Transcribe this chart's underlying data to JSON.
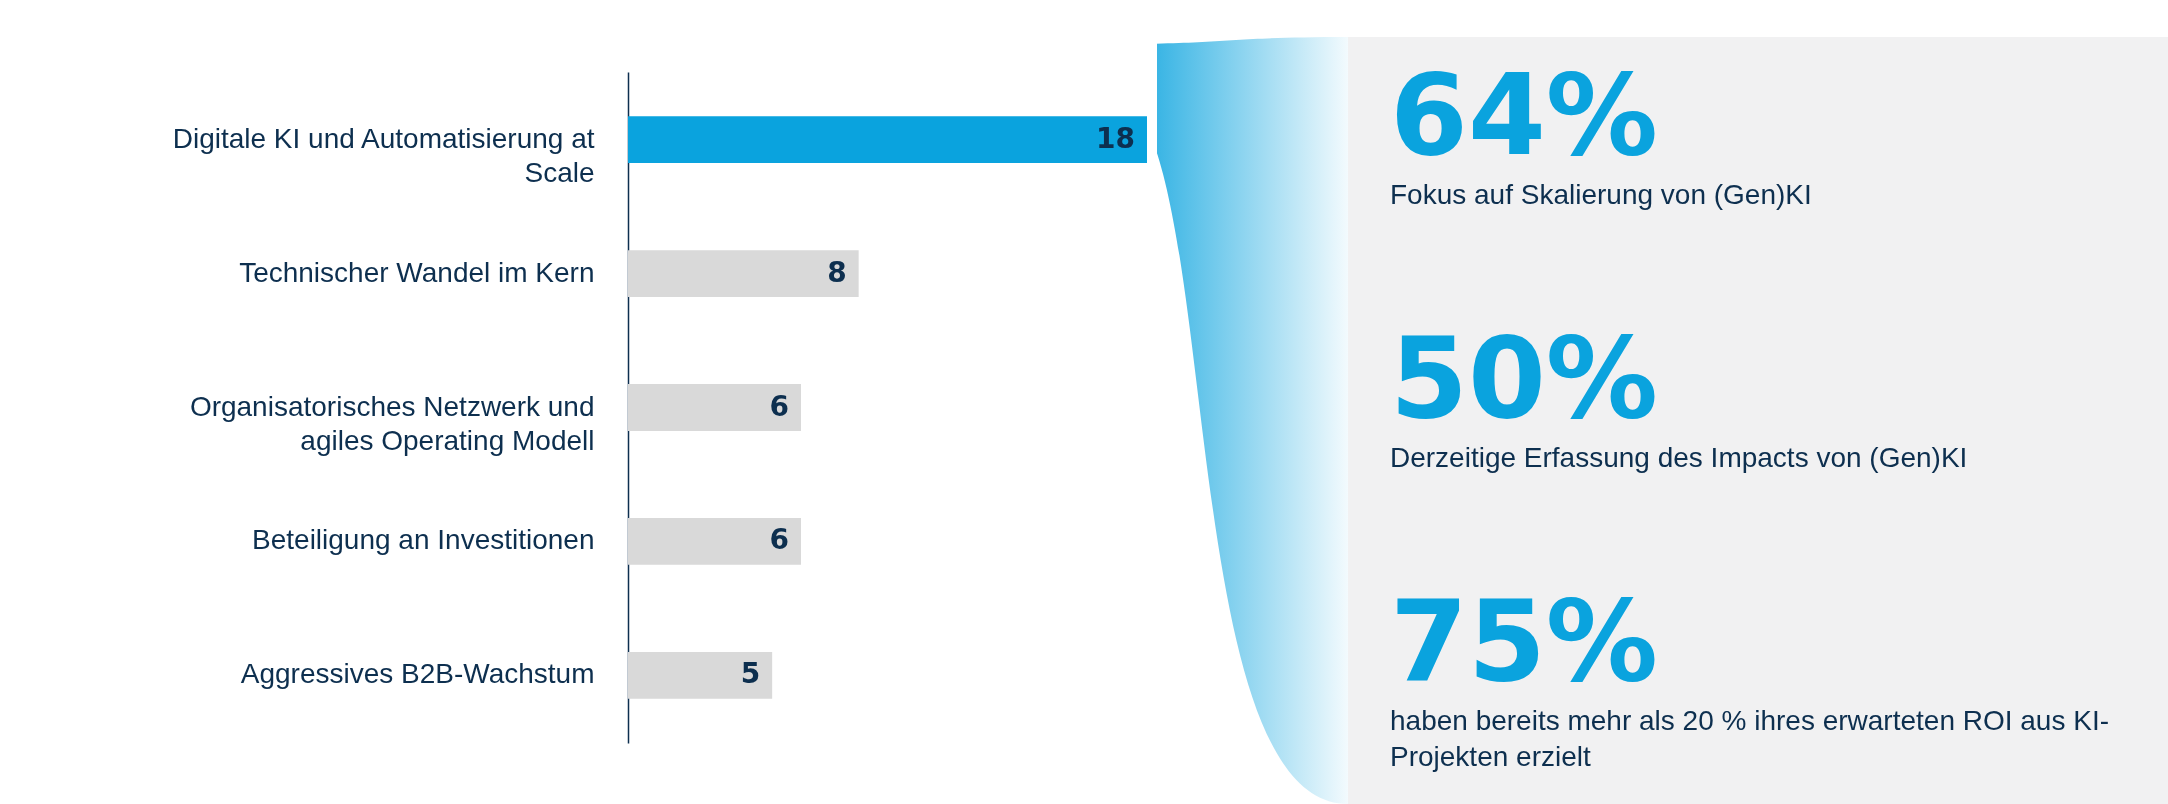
{
  "chart_data": [
    {
      "type": "bar",
      "orientation": "horizontal",
      "categories": [
        "Digitale KI und Automatisierung at Scale",
        "Technischer Wandel im Kern",
        "Organisatorisches Netzwerk und agiles Operating Modell",
        "Beteiligung an Investitionen",
        "Aggressives B2B-Wachstum"
      ],
      "values": [
        18,
        8,
        6,
        6,
        5
      ],
      "colors": [
        "#0aa3de",
        "#d9d9d9",
        "#d9d9d9",
        "#d9d9d9",
        "#d9d9d9"
      ],
      "data_labels": true
    },
    {
      "type": "other",
      "annotations": [
        "64%",
        "Fokus auf Skalierung von (Gen)KI",
        "50%",
        "Derzeitige Erfassung des Impacts von (Gen)KI",
        "75%",
        "haben bereits mehr als 20 % ihres erwarteten ROI aus KI-Projekten erzielt"
      ]
    }
  ]
}
